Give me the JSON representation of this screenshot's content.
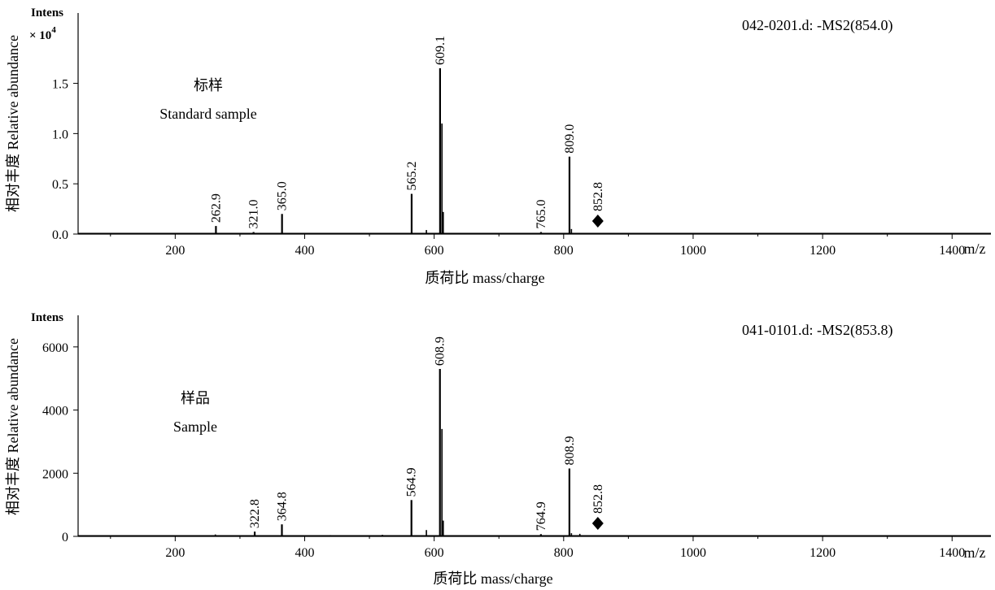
{
  "chart_data": [
    {
      "type": "bar",
      "y_unit_label": "Intens",
      "y_scale_label": "× 10",
      "y_scale_exp": "4",
      "annotation": "042-0201.d: -MS2(854.0)",
      "sample_label_cn": "标样",
      "sample_label_en": "Standard sample",
      "ylabel": "相对丰度 Relative abundance",
      "xlabel": "质荷比 mass/charge",
      "x_unit_label": "m/z",
      "xlim": [
        50,
        1460
      ],
      "ylim": [
        0,
        2.2
      ],
      "x_ticks": [
        200,
        400,
        600,
        800,
        1000,
        1200,
        1400
      ],
      "y_ticks": [
        0.0,
        0.5,
        1.0,
        1.5
      ],
      "y_tick_labels": [
        "0.0",
        "0.5",
        "1.0",
        "1.5"
      ],
      "peaks": [
        {
          "mz": 262.9,
          "intensity": 0.08,
          "label": "262.9"
        },
        {
          "mz": 321.0,
          "intensity": 0.02,
          "label": "321.0"
        },
        {
          "mz": 365.0,
          "intensity": 0.2,
          "label": "365.0"
        },
        {
          "mz": 565.2,
          "intensity": 0.4,
          "label": "565.2"
        },
        {
          "mz": 609.1,
          "intensity": 1.65,
          "label": "609.1"
        },
        {
          "mz": 765.0,
          "intensity": 0.02,
          "label": "765.0"
        },
        {
          "mz": 809.0,
          "intensity": 0.77,
          "label": "809.0"
        },
        {
          "mz": 852.8,
          "intensity": 0.0,
          "label": "852.8",
          "precursor": true
        }
      ],
      "minor_peaks": [
        {
          "mz": 520,
          "intensity": 0.01
        },
        {
          "mz": 588,
          "intensity": 0.04
        },
        {
          "mz": 612,
          "intensity": 1.1
        },
        {
          "mz": 614,
          "intensity": 0.22
        },
        {
          "mz": 812,
          "intensity": 0.05
        }
      ]
    },
    {
      "type": "bar",
      "y_unit_label": "Intens",
      "annotation": "041-0101.d: -MS2(853.8)",
      "sample_label_cn": "样品",
      "sample_label_en": "Sample",
      "ylabel": "相对丰度 Relative abundance",
      "xlabel": "质荷比 mass/charge",
      "x_unit_label": "m/z",
      "xlim": [
        50,
        1460
      ],
      "ylim": [
        0,
        7000
      ],
      "x_ticks": [
        200,
        400,
        600,
        800,
        1000,
        1200,
        1400
      ],
      "y_ticks": [
        0,
        2000,
        4000,
        6000
      ],
      "y_tick_labels": [
        "0",
        "2000",
        "4000",
        "6000"
      ],
      "peaks": [
        {
          "mz": 322.8,
          "intensity": 150,
          "label": "322.8"
        },
        {
          "mz": 364.8,
          "intensity": 380,
          "label": "364.8"
        },
        {
          "mz": 564.9,
          "intensity": 1150,
          "label": "564.9"
        },
        {
          "mz": 608.9,
          "intensity": 5300,
          "label": "608.9"
        },
        {
          "mz": 764.9,
          "intensity": 70,
          "label": "764.9"
        },
        {
          "mz": 808.9,
          "intensity": 2150,
          "label": "808.9"
        },
        {
          "mz": 852.8,
          "intensity": 0,
          "label": "852.8",
          "precursor": true
        }
      ],
      "minor_peaks": [
        {
          "mz": 262,
          "intensity": 60
        },
        {
          "mz": 440,
          "intensity": 40
        },
        {
          "mz": 520,
          "intensity": 50
        },
        {
          "mz": 588,
          "intensity": 200
        },
        {
          "mz": 612,
          "intensity": 3400
        },
        {
          "mz": 614,
          "intensity": 500
        },
        {
          "mz": 812,
          "intensity": 100
        },
        {
          "mz": 825,
          "intensity": 80
        }
      ]
    }
  ]
}
